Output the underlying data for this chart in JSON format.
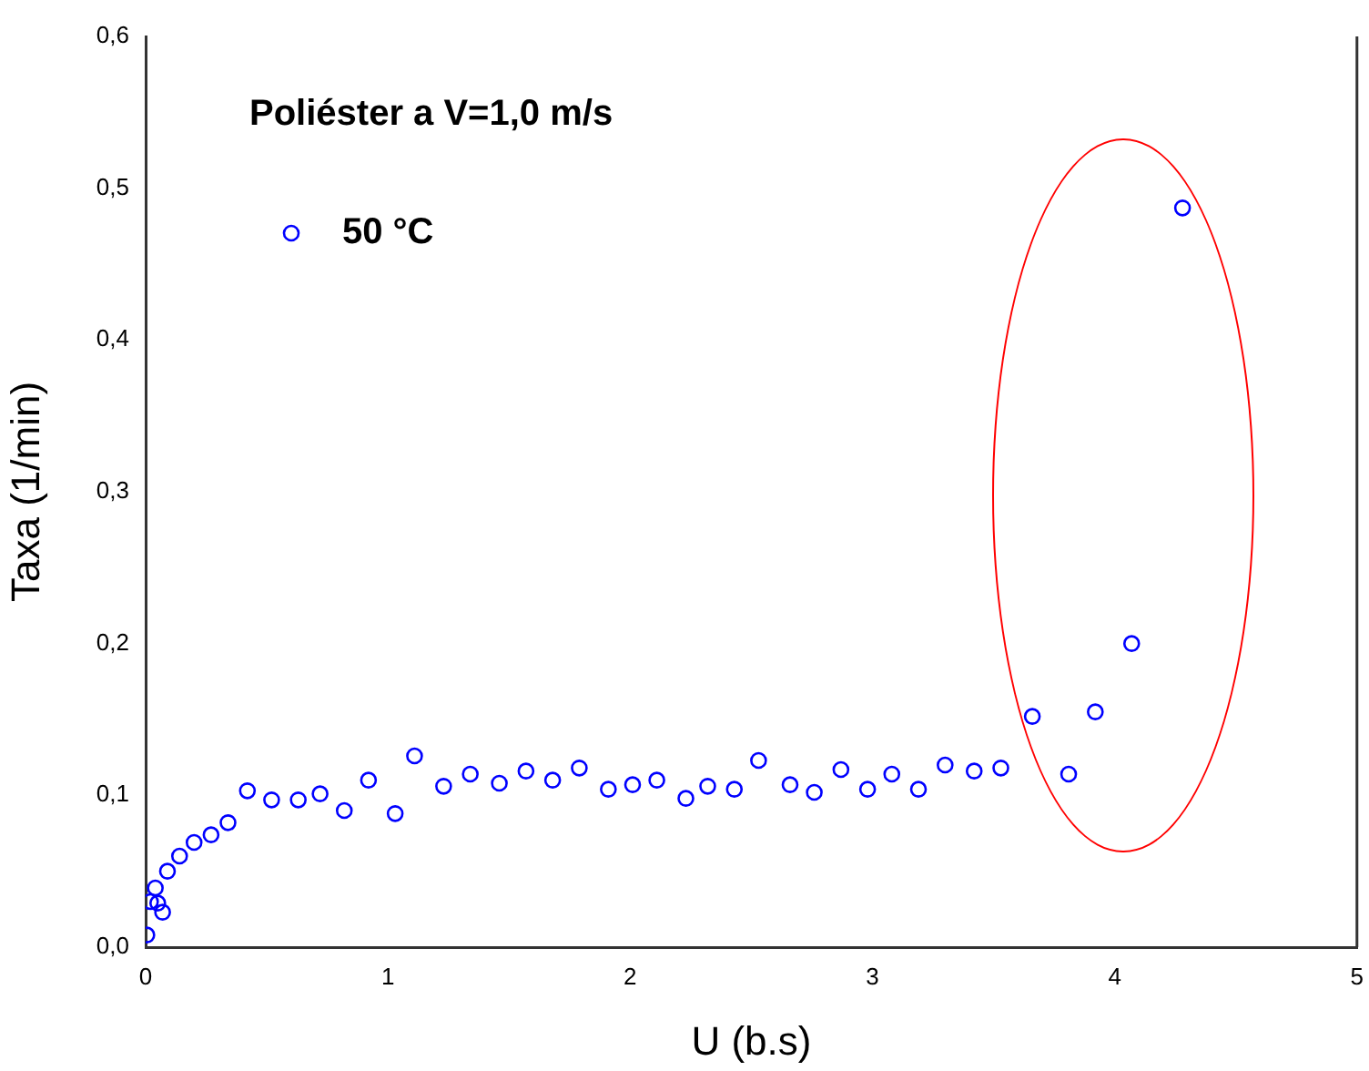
{
  "chart_data": {
    "type": "scatter",
    "title": "Poliéster a V=1,0 m/s",
    "xlabel": "U (b.s)",
    "ylabel": "Taxa (1/min)",
    "legend": "top left",
    "marker": "circle",
    "grid": false,
    "xlim": [
      0,
      5
    ],
    "xticks": [
      0,
      1,
      2,
      3,
      4,
      5
    ],
    "ylim": [
      0,
      0.6
    ],
    "yticks": [
      {
        "value": 0,
        "label": "0,0"
      },
      {
        "value": 0.1,
        "label": "0,1"
      },
      {
        "value": 0.2,
        "label": "0,2"
      },
      {
        "value": 0.3,
        "label": "0,3"
      },
      {
        "value": 0.4,
        "label": "0,4"
      },
      {
        "value": 0.5,
        "label": "0,5"
      },
      {
        "value": 0.6,
        "label": "0,6"
      }
    ],
    "series": [
      {
        "name": "50 °C",
        "color": "#0000ff",
        "x": [
          0.005,
          0.02,
          0.04,
          0.05,
          0.07,
          0.09,
          0.14,
          0.2,
          0.27,
          0.34,
          0.42,
          0.52,
          0.63,
          0.72,
          0.82,
          0.92,
          1.03,
          1.11,
          1.23,
          1.34,
          1.46,
          1.57,
          1.68,
          1.79,
          1.91,
          2.01,
          2.11,
          2.23,
          2.32,
          2.43,
          2.53,
          2.66,
          2.76,
          2.87,
          2.98,
          3.08,
          3.19,
          3.3,
          3.42,
          3.53,
          3.66,
          3.81,
          3.92,
          4.07,
          4.28
        ],
        "values": [
          0.008,
          0.03,
          0.039,
          0.029,
          0.023,
          0.05,
          0.06,
          0.069,
          0.074,
          0.082,
          0.103,
          0.097,
          0.097,
          0.101,
          0.09,
          0.11,
          0.088,
          0.126,
          0.106,
          0.114,
          0.108,
          0.116,
          0.11,
          0.118,
          0.104,
          0.107,
          0.11,
          0.098,
          0.106,
          0.104,
          0.123,
          0.107,
          0.102,
          0.117,
          0.104,
          0.114,
          0.104,
          0.12,
          0.116,
          0.118,
          0.152,
          0.114,
          0.155,
          0.2,
          0.487
        ]
      }
    ]
  }
}
